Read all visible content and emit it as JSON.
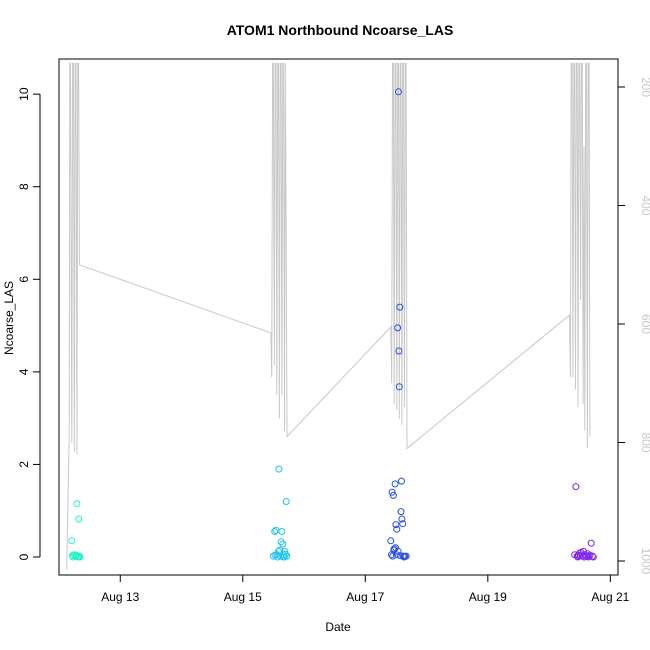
{
  "chart_data": {
    "type": "scatter",
    "title": "ATOM1 Northbound Ncoarse_LAS",
    "xlabel": "Date",
    "ylabel": "Ncoarse_LAS",
    "xlim": [
      "2016-08-12T00:00",
      "2016-08-21T03:00"
    ],
    "ylim": [
      0,
      10.5
    ],
    "y2lim": [
      1015,
      160
    ],
    "y2_reversed": true,
    "x_ticks": [
      {
        "label": "Aug 13",
        "date": "2016-08-13"
      },
      {
        "label": "Aug 15",
        "date": "2016-08-15"
      },
      {
        "label": "Aug 17",
        "date": "2016-08-17"
      },
      {
        "label": "Aug 19",
        "date": "2016-08-19"
      },
      {
        "label": "Aug 21",
        "date": "2016-08-21"
      }
    ],
    "y_ticks": [
      "0",
      "2",
      "4",
      "6",
      "8",
      "10"
    ],
    "y2_ticks": [
      "200",
      "400",
      "600",
      "800",
      "1000"
    ],
    "grid": false,
    "legend": "none",
    "line_color": "#c8c8c8",
    "series": [
      {
        "color": "#20f5c8",
        "points": [
          [
            "2016-08-12T05:00",
            0.35
          ],
          [
            "2016-08-12T06:00",
            0.05
          ],
          [
            "2016-08-12T06:30",
            0.02
          ],
          [
            "2016-08-12T07:00",
            1.15
          ],
          [
            "2016-08-12T07:20",
            0.0
          ],
          [
            "2016-08-12T07:45",
            0.82
          ],
          [
            "2016-08-12T08:00",
            0.02
          ],
          [
            "2016-08-12T05:30",
            0.0
          ],
          [
            "2016-08-12T06:50",
            0.04
          ],
          [
            "2016-08-12T07:35",
            0.01
          ],
          [
            "2016-08-12T05:15",
            0.03
          ],
          [
            "2016-08-12T08:10",
            0.0
          ]
        ]
      },
      {
        "color": "#1ec4f0",
        "points": [
          [
            "2016-08-15T12:00",
            0.02
          ],
          [
            "2016-08-15T12:30",
            0.55
          ],
          [
            "2016-08-15T13:00",
            0.58
          ],
          [
            "2016-08-15T13:20",
            0.05
          ],
          [
            "2016-08-15T14:00",
            0.12
          ],
          [
            "2016-08-15T14:10",
            1.9
          ],
          [
            "2016-08-15T14:30",
            0.15
          ],
          [
            "2016-08-15T15:00",
            0.33
          ],
          [
            "2016-08-15T15:20",
            0.55
          ],
          [
            "2016-08-15T15:40",
            0.28
          ],
          [
            "2016-08-15T16:00",
            0.05
          ],
          [
            "2016-08-15T16:30",
            0.12
          ],
          [
            "2016-08-15T17:00",
            1.2
          ],
          [
            "2016-08-15T17:10",
            0.02
          ],
          [
            "2016-08-15T12:40",
            0.04
          ],
          [
            "2016-08-15T13:40",
            0.0
          ],
          [
            "2016-08-15T14:50",
            0.02
          ],
          [
            "2016-08-15T16:15",
            0.0
          ],
          [
            "2016-08-15T16:45",
            0.06
          ],
          [
            "2016-08-15T15:50",
            0.0
          ]
        ]
      },
      {
        "color": "#2850e6",
        "points": [
          [
            "2016-08-17T10:00",
            0.35
          ],
          [
            "2016-08-17T10:30",
            1.4
          ],
          [
            "2016-08-17T11:00",
            1.33
          ],
          [
            "2016-08-17T11:20",
            0.18
          ],
          [
            "2016-08-17T11:40",
            1.58
          ],
          [
            "2016-08-17T12:00",
            0.7
          ],
          [
            "2016-08-17T12:20",
            0.6
          ],
          [
            "2016-08-17T12:40",
            4.95
          ],
          [
            "2016-08-17T13:00",
            10.05
          ],
          [
            "2016-08-17T13:10",
            4.45
          ],
          [
            "2016-08-17T13:20",
            3.68
          ],
          [
            "2016-08-17T13:30",
            5.4
          ],
          [
            "2016-08-17T14:00",
            0.98
          ],
          [
            "2016-08-17T14:10",
            1.64
          ],
          [
            "2016-08-17T14:20",
            0.82
          ],
          [
            "2016-08-17T14:40",
            0.72
          ],
          [
            "2016-08-17T10:15",
            0.05
          ],
          [
            "2016-08-17T10:45",
            0.02
          ],
          [
            "2016-08-17T11:10",
            0.15
          ],
          [
            "2016-08-17T11:50",
            0.2
          ],
          [
            "2016-08-17T12:10",
            0.05
          ],
          [
            "2016-08-17T12:50",
            0.12
          ],
          [
            "2016-08-17T13:40",
            0.03
          ],
          [
            "2016-08-17T14:50",
            0.02
          ],
          [
            "2016-08-17T15:10",
            0.0
          ],
          [
            "2016-08-17T15:30",
            0.01
          ],
          [
            "2016-08-17T16:00",
            0.02
          ]
        ]
      },
      {
        "color": "#8228ee",
        "points": [
          [
            "2016-08-20T10:00",
            0.05
          ],
          [
            "2016-08-20T10:30",
            1.52
          ],
          [
            "2016-08-20T11:00",
            0.02
          ],
          [
            "2016-08-20T11:30",
            0.04
          ],
          [
            "2016-08-20T12:00",
            0.08
          ],
          [
            "2016-08-20T12:30",
            0.1
          ],
          [
            "2016-08-20T13:00",
            0.02
          ],
          [
            "2016-08-20T13:30",
            0.12
          ],
          [
            "2016-08-20T14:00",
            0.05
          ],
          [
            "2016-08-20T14:30",
            0.02
          ],
          [
            "2016-08-20T15:00",
            0.07
          ],
          [
            "2016-08-20T15:30",
            0.0
          ],
          [
            "2016-08-20T16:00",
            0.04
          ],
          [
            "2016-08-20T16:30",
            0.3
          ],
          [
            "2016-08-20T17:00",
            0.02
          ],
          [
            "2016-08-20T17:20",
            0.0
          ],
          [
            "2016-08-20T11:15",
            0.0
          ],
          [
            "2016-08-20T12:15",
            0.03
          ],
          [
            "2016-08-20T13:45",
            0.0
          ],
          [
            "2016-08-20T15:15",
            0.02
          ]
        ]
      }
    ],
    "right_axis_line": [
      [
        "2016-08-12T03:00",
        1015
      ],
      [
        "2016-08-12T04:00",
        785
      ],
      [
        "2016-08-12T04:15",
        160
      ],
      [
        "2016-08-12T04:30",
        160
      ],
      [
        "2016-08-12T05:00",
        800
      ],
      [
        "2016-08-12T05:20",
        160
      ],
      [
        "2016-08-12T05:40",
        160
      ],
      [
        "2016-08-12T06:00",
        815
      ],
      [
        "2016-08-12T06:20",
        160
      ],
      [
        "2016-08-12T06:40",
        160
      ],
      [
        "2016-08-12T07:00",
        820
      ],
      [
        "2016-08-12T07:20",
        160
      ],
      [
        "2016-08-12T07:40",
        160
      ],
      [
        "2016-08-12T08:00",
        500
      ],
      [
        "2016-08-15T11:00",
        615
      ],
      [
        "2016-08-15T11:20",
        690
      ],
      [
        "2016-08-15T11:40",
        160
      ],
      [
        "2016-08-15T12:00",
        160
      ],
      [
        "2016-08-15T12:20",
        670
      ],
      [
        "2016-08-15T12:40",
        160
      ],
      [
        "2016-08-15T13:00",
        160
      ],
      [
        "2016-08-15T13:20",
        720
      ],
      [
        "2016-08-15T13:40",
        160
      ],
      [
        "2016-08-15T14:00",
        160
      ],
      [
        "2016-08-15T14:20",
        760
      ],
      [
        "2016-08-15T14:40",
        160
      ],
      [
        "2016-08-15T15:00",
        160
      ],
      [
        "2016-08-15T15:20",
        720
      ],
      [
        "2016-08-15T15:40",
        160
      ],
      [
        "2016-08-15T16:00",
        160
      ],
      [
        "2016-08-15T16:20",
        780
      ],
      [
        "2016-08-15T16:40",
        160
      ],
      [
        "2016-08-15T17:00",
        460
      ],
      [
        "2016-08-15T17:20",
        790
      ],
      [
        "2016-08-17T10:00",
        605
      ],
      [
        "2016-08-17T10:20",
        700
      ],
      [
        "2016-08-17T10:40",
        160
      ],
      [
        "2016-08-17T11:00",
        160
      ],
      [
        "2016-08-17T11:20",
        735
      ],
      [
        "2016-08-17T11:40",
        160
      ],
      [
        "2016-08-17T12:00",
        160
      ],
      [
        "2016-08-17T12:20",
        745
      ],
      [
        "2016-08-17T12:40",
        160
      ],
      [
        "2016-08-17T13:00",
        160
      ],
      [
        "2016-08-17T13:20",
        760
      ],
      [
        "2016-08-17T13:40",
        160
      ],
      [
        "2016-08-17T14:00",
        160
      ],
      [
        "2016-08-17T14:20",
        770
      ],
      [
        "2016-08-17T14:40",
        160
      ],
      [
        "2016-08-17T15:00",
        160
      ],
      [
        "2016-08-17T15:20",
        740
      ],
      [
        "2016-08-17T15:40",
        160
      ],
      [
        "2016-08-17T16:00",
        160
      ],
      [
        "2016-08-17T16:20",
        810
      ],
      [
        "2016-08-20T08:00",
        585
      ],
      [
        "2016-08-20T08:20",
        690
      ],
      [
        "2016-08-20T08:40",
        160
      ],
      [
        "2016-08-20T09:00",
        160
      ],
      [
        "2016-08-20T09:20",
        690
      ],
      [
        "2016-08-20T09:40",
        160
      ],
      [
        "2016-08-20T10:00",
        160
      ],
      [
        "2016-08-20T10:20",
        710
      ],
      [
        "2016-08-20T10:40",
        160
      ],
      [
        "2016-08-20T11:00",
        160
      ],
      [
        "2016-08-20T11:20",
        740
      ],
      [
        "2016-08-20T11:40",
        160
      ],
      [
        "2016-08-20T12:00",
        160
      ],
      [
        "2016-08-20T12:20",
        560
      ],
      [
        "2016-08-20T12:40",
        160
      ],
      [
        "2016-08-20T13:00",
        160
      ],
      [
        "2016-08-20T13:20",
        735
      ],
      [
        "2016-08-20T13:40",
        300
      ],
      [
        "2016-08-20T14:00",
        780
      ],
      [
        "2016-08-20T14:20",
        160
      ],
      [
        "2016-08-20T14:40",
        160
      ],
      [
        "2016-08-20T15:00",
        810
      ],
      [
        "2016-08-20T15:20",
        160
      ],
      [
        "2016-08-20T15:40",
        160
      ],
      [
        "2016-08-20T16:00",
        790
      ]
    ]
  }
}
